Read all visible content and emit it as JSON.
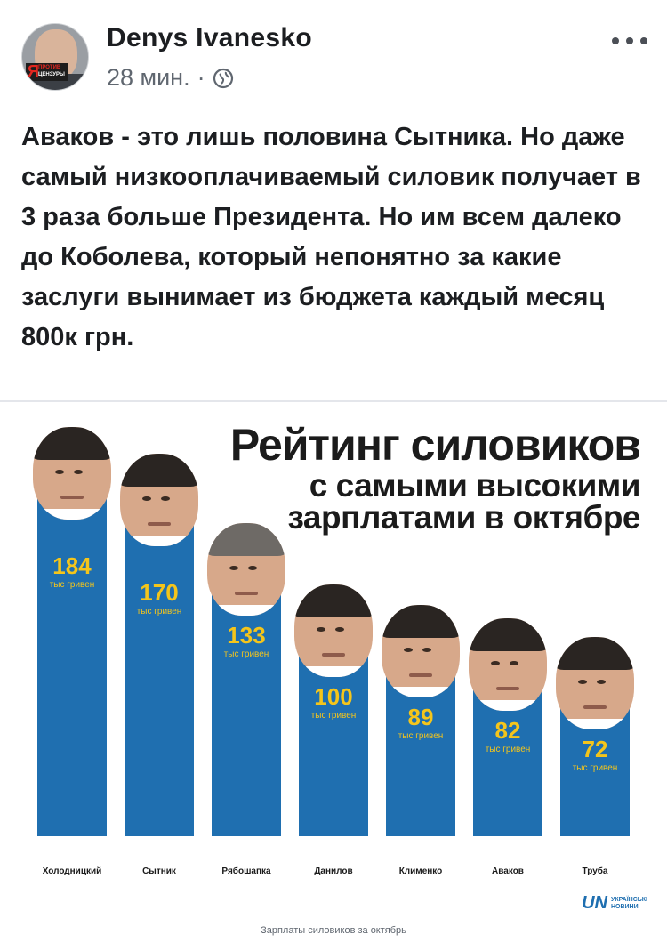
{
  "post": {
    "author": "Denys Ivanesko",
    "time": "28 мин.",
    "separator": "·",
    "privacy_icon": "globe-icon",
    "more_icon": "more-options-icon",
    "avatar_badge": {
      "letter": "Я",
      "line1": "ПРОТИВ",
      "line2": "ЦЕНЗУРЫ"
    },
    "text": "Аваков - это лишь половина Сытника. Но даже самый низкооплачиваемый силовик получает в 3 раза больше Президента. Но им всем далеко до Коболева, который непонятно за какие заслуги вынимает из бюджета каждый месяц 800к грн."
  },
  "infographic": {
    "title": "Рейтинг силовиков",
    "subtitle": "с самыми высокими зарплатами в октябре",
    "logo_mark": "UN",
    "logo_line1": "УКРАЇНСЬКІ",
    "logo_line2": "НОВИНИ",
    "caption": "Зарплаты силовиков за октябрь",
    "colors": {
      "bar": "#1f6fb0",
      "value_text": "#f4c51b"
    }
  },
  "chart_data": {
    "type": "bar",
    "title": "Рейтинг силовиков",
    "subtitle": "с самыми высокими зарплатами в октябре",
    "categories": [
      "Холодницкий",
      "Сытник",
      "Рябошапка",
      "Данилов",
      "Клименко",
      "Аваков",
      "Труба"
    ],
    "values": [
      184,
      170,
      133,
      100,
      89,
      82,
      72
    ],
    "unit_label": "тыс гривен",
    "xlabel": "",
    "ylabel": ""
  }
}
